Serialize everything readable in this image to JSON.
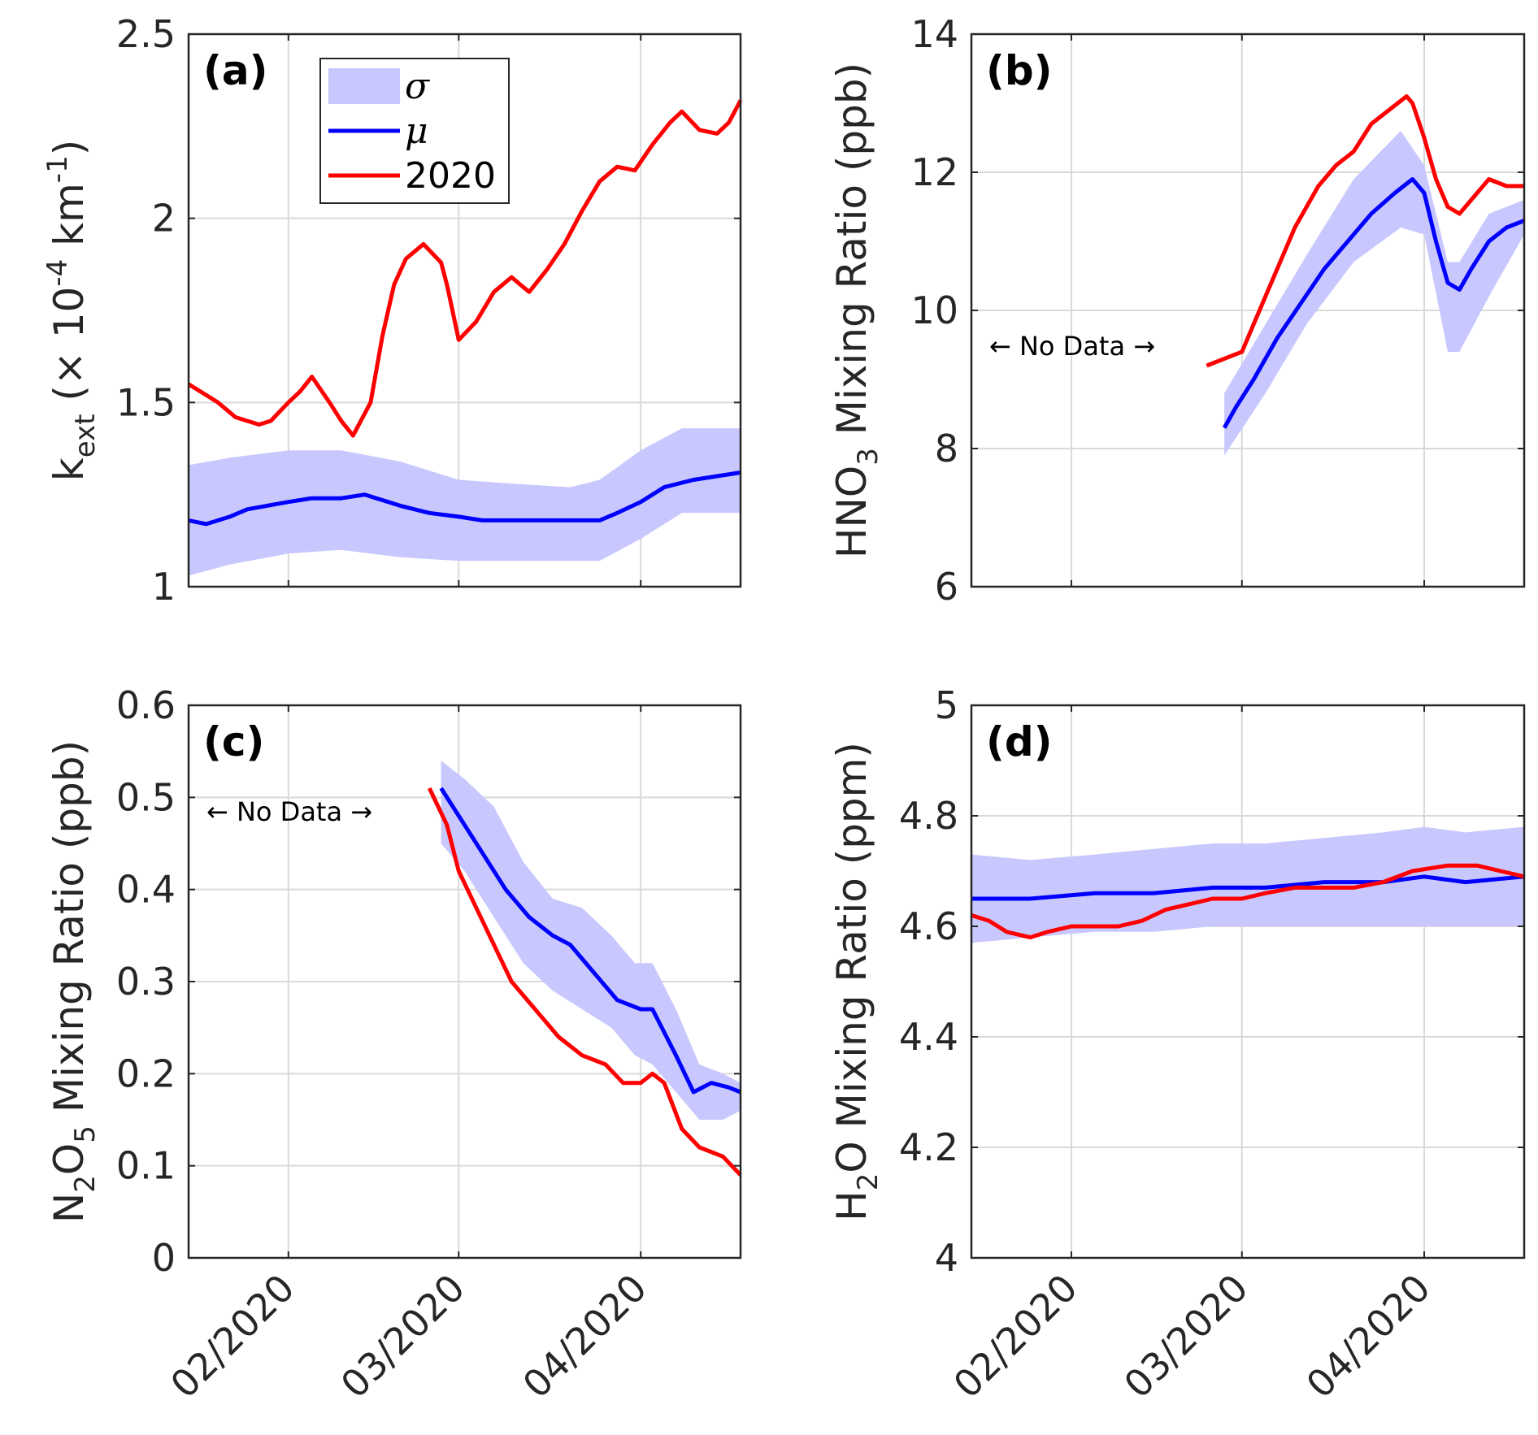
{
  "colors": {
    "band": "#c8c8ff",
    "mean": "#0000ff",
    "year2020": "#ff0000",
    "grid": "#d9d9d9",
    "axis": "#262626"
  },
  "legend": {
    "entries": [
      {
        "key": "band",
        "label": "σ"
      },
      {
        "key": "mean",
        "label": "μ"
      },
      {
        "key": "year2020",
        "label": "2020"
      }
    ]
  },
  "no_data_label": "← No Data →",
  "x_axis": {
    "start": "2020-01-15",
    "end": "2020-04-18",
    "ticks": [
      {
        "date": "2020-02-01",
        "label": "02/2020"
      },
      {
        "date": "2020-03-01",
        "label": "03/2020"
      },
      {
        "date": "2020-04-01",
        "label": "04/2020"
      }
    ]
  },
  "chart_data": [
    {
      "panel": "(a)",
      "type": "line",
      "ylabel": {
        "main": "k",
        "sub": "ext",
        "rest": " (× 10",
        "sup1": "-4",
        "unit": " km",
        "sup2": "-1",
        "close": ")"
      },
      "ylim": [
        1,
        2.5
      ],
      "yticks": [
        1,
        1.5,
        2,
        2.5
      ],
      "ytick_labels": [
        "1",
        "1.5",
        "2",
        "2.5"
      ],
      "has_legend": true,
      "no_data": false,
      "series": [
        {
          "name": "σ",
          "kind": "band",
          "x": [
            "2020-01-15",
            "2020-01-22",
            "2020-02-01",
            "2020-02-10",
            "2020-02-20",
            "2020-03-01",
            "2020-03-10",
            "2020-03-20",
            "2020-03-25",
            "2020-04-01",
            "2020-04-08",
            "2020-04-18"
          ],
          "lower": [
            1.03,
            1.06,
            1.09,
            1.1,
            1.08,
            1.07,
            1.07,
            1.07,
            1.07,
            1.13,
            1.2,
            1.2
          ],
          "upper": [
            1.33,
            1.35,
            1.37,
            1.37,
            1.34,
            1.29,
            1.28,
            1.27,
            1.29,
            1.37,
            1.43,
            1.43
          ]
        },
        {
          "name": "μ",
          "kind": "line",
          "x": [
            "2020-01-15",
            "2020-01-18",
            "2020-01-22",
            "2020-01-25",
            "2020-02-01",
            "2020-02-05",
            "2020-02-10",
            "2020-02-14",
            "2020-02-20",
            "2020-02-25",
            "2020-03-01",
            "2020-03-05",
            "2020-03-10",
            "2020-03-15",
            "2020-03-20",
            "2020-03-25",
            "2020-03-28",
            "2020-04-01",
            "2020-04-05",
            "2020-04-10",
            "2020-04-14",
            "2020-04-18"
          ],
          "y": [
            1.18,
            1.17,
            1.19,
            1.21,
            1.23,
            1.24,
            1.24,
            1.25,
            1.22,
            1.2,
            1.19,
            1.18,
            1.18,
            1.18,
            1.18,
            1.18,
            1.2,
            1.23,
            1.27,
            1.29,
            1.3,
            1.31
          ]
        },
        {
          "name": "2020",
          "kind": "line",
          "x": [
            "2020-01-15",
            "2020-01-18",
            "2020-01-20",
            "2020-01-23",
            "2020-01-25",
            "2020-01-27",
            "2020-01-29",
            "2020-02-01",
            "2020-02-03",
            "2020-02-05",
            "2020-02-08",
            "2020-02-10",
            "2020-02-12",
            "2020-02-15",
            "2020-02-17",
            "2020-02-19",
            "2020-02-21",
            "2020-02-24",
            "2020-02-27",
            "2020-02-28",
            "2020-03-01",
            "2020-03-04",
            "2020-03-07",
            "2020-03-10",
            "2020-03-13",
            "2020-03-16",
            "2020-03-19",
            "2020-03-22",
            "2020-03-25",
            "2020-03-28",
            "2020-03-31",
            "2020-04-03",
            "2020-04-06",
            "2020-04-08",
            "2020-04-11",
            "2020-04-14",
            "2020-04-16",
            "2020-04-18"
          ],
          "y": [
            1.55,
            1.52,
            1.5,
            1.46,
            1.45,
            1.44,
            1.45,
            1.5,
            1.53,
            1.57,
            1.5,
            1.45,
            1.41,
            1.5,
            1.68,
            1.82,
            1.89,
            1.93,
            1.88,
            1.82,
            1.67,
            1.72,
            1.8,
            1.84,
            1.8,
            1.86,
            1.93,
            2.02,
            2.1,
            2.14,
            2.13,
            2.2,
            2.26,
            2.29,
            2.24,
            2.23,
            2.26,
            2.32
          ]
        }
      ]
    },
    {
      "panel": "(b)",
      "type": "line",
      "ylabel": {
        "main": "HNO",
        "sub": "3",
        "rest": " Mixing Ratio (ppb)"
      },
      "ylim": [
        6,
        14
      ],
      "yticks": [
        6,
        8,
        10,
        12,
        14
      ],
      "ytick_labels": [
        "6",
        "8",
        "10",
        "12",
        "14"
      ],
      "has_legend": false,
      "no_data": true,
      "series": [
        {
          "name": "σ",
          "kind": "band",
          "x": [
            "2020-02-27",
            "2020-03-05",
            "2020-03-12",
            "2020-03-20",
            "2020-03-28",
            "2020-04-01",
            "2020-04-05",
            "2020-04-07",
            "2020-04-12",
            "2020-04-18"
          ],
          "lower": [
            7.9,
            8.8,
            9.8,
            10.7,
            11.2,
            11.1,
            9.4,
            9.4,
            10.2,
            11.1
          ],
          "upper": [
            8.8,
            9.8,
            10.8,
            11.9,
            12.6,
            12.1,
            10.7,
            10.7,
            11.4,
            11.6
          ]
        },
        {
          "name": "μ",
          "kind": "line",
          "x": [
            "2020-02-27",
            "2020-02-29",
            "2020-03-03",
            "2020-03-07",
            "2020-03-11",
            "2020-03-15",
            "2020-03-19",
            "2020-03-23",
            "2020-03-27",
            "2020-03-30",
            "2020-04-01",
            "2020-04-03",
            "2020-04-05",
            "2020-04-07",
            "2020-04-09",
            "2020-04-12",
            "2020-04-15",
            "2020-04-18"
          ],
          "y": [
            8.3,
            8.6,
            9.0,
            9.6,
            10.1,
            10.6,
            11.0,
            11.4,
            11.7,
            11.9,
            11.7,
            11.0,
            10.4,
            10.3,
            10.6,
            11.0,
            11.2,
            11.3
          ]
        },
        {
          "name": "2020",
          "kind": "line",
          "x": [
            "2020-02-24",
            "2020-03-01",
            "2020-03-03",
            "2020-03-06",
            "2020-03-10",
            "2020-03-14",
            "2020-03-17",
            "2020-03-20",
            "2020-03-23",
            "2020-03-26",
            "2020-03-29",
            "2020-03-30",
            "2020-04-01",
            "2020-04-03",
            "2020-04-05",
            "2020-04-07",
            "2020-04-09",
            "2020-04-12",
            "2020-04-15",
            "2020-04-18"
          ],
          "y": [
            9.2,
            9.4,
            9.8,
            10.4,
            11.2,
            11.8,
            12.1,
            12.3,
            12.7,
            12.9,
            13.1,
            13.0,
            12.5,
            11.9,
            11.5,
            11.4,
            11.6,
            11.9,
            11.8,
            11.8
          ]
        }
      ]
    },
    {
      "panel": "(c)",
      "type": "line",
      "ylabel": {
        "main": "N",
        "sub": "2",
        "mid": "O",
        "sub2": "5",
        "rest": " Mixing Ratio (ppb)"
      },
      "ylim": [
        0,
        0.6
      ],
      "yticks": [
        0,
        0.1,
        0.2,
        0.3,
        0.4,
        0.5,
        0.6
      ],
      "ytick_labels": [
        "0",
        "0.1",
        "0.2",
        "0.3",
        "0.4",
        "0.5",
        "0.6"
      ],
      "has_legend": false,
      "no_data": true,
      "series": [
        {
          "name": "σ",
          "kind": "band",
          "x": [
            "2020-02-27",
            "2020-03-02",
            "2020-03-07",
            "2020-03-12",
            "2020-03-17",
            "2020-03-22",
            "2020-03-27",
            "2020-03-31",
            "2020-04-03",
            "2020-04-07",
            "2020-04-11",
            "2020-04-15",
            "2020-04-18"
          ],
          "lower": [
            0.45,
            0.42,
            0.37,
            0.32,
            0.29,
            0.27,
            0.25,
            0.22,
            0.21,
            0.18,
            0.15,
            0.15,
            0.16
          ],
          "upper": [
            0.54,
            0.52,
            0.49,
            0.43,
            0.39,
            0.38,
            0.35,
            0.32,
            0.32,
            0.27,
            0.21,
            0.2,
            0.19
          ]
        },
        {
          "name": "μ",
          "kind": "line",
          "x": [
            "2020-02-27",
            "2020-03-01",
            "2020-03-05",
            "2020-03-09",
            "2020-03-13",
            "2020-03-17",
            "2020-03-20",
            "2020-03-24",
            "2020-03-28",
            "2020-04-01",
            "2020-04-03",
            "2020-04-07",
            "2020-04-10",
            "2020-04-13",
            "2020-04-16",
            "2020-04-18"
          ],
          "y": [
            0.51,
            0.48,
            0.44,
            0.4,
            0.37,
            0.35,
            0.34,
            0.31,
            0.28,
            0.27,
            0.27,
            0.22,
            0.18,
            0.19,
            0.185,
            0.18
          ]
        },
        {
          "name": "2020",
          "kind": "line",
          "x": [
            "2020-02-25",
            "2020-02-28",
            "2020-03-01",
            "2020-03-04",
            "2020-03-07",
            "2020-03-10",
            "2020-03-14",
            "2020-03-18",
            "2020-03-22",
            "2020-03-26",
            "2020-03-29",
            "2020-04-01",
            "2020-04-03",
            "2020-04-05",
            "2020-04-08",
            "2020-04-11",
            "2020-04-15",
            "2020-04-18"
          ],
          "y": [
            0.51,
            0.47,
            0.42,
            0.38,
            0.34,
            0.3,
            0.27,
            0.24,
            0.22,
            0.21,
            0.19,
            0.19,
            0.2,
            0.19,
            0.14,
            0.12,
            0.11,
            0.09
          ]
        }
      ]
    },
    {
      "panel": "(d)",
      "type": "line",
      "ylabel": {
        "main": "H",
        "sub": "2",
        "rest": "O Mixing Ratio (ppm)"
      },
      "ylim": [
        4,
        5
      ],
      "yticks": [
        4,
        4.2,
        4.4,
        4.6,
        4.8,
        5
      ],
      "ytick_labels": [
        "4",
        "4.2",
        "4.4",
        "4.6",
        "4.8",
        "5"
      ],
      "has_legend": false,
      "no_data": false,
      "series": [
        {
          "name": "σ",
          "kind": "band",
          "x": [
            "2020-01-15",
            "2020-01-25",
            "2020-02-05",
            "2020-02-15",
            "2020-02-25",
            "2020-03-05",
            "2020-03-15",
            "2020-03-25",
            "2020-04-01",
            "2020-04-08",
            "2020-04-18"
          ],
          "lower": [
            4.57,
            4.58,
            4.59,
            4.59,
            4.6,
            4.6,
            4.6,
            4.6,
            4.6,
            4.6,
            4.6
          ],
          "upper": [
            4.73,
            4.72,
            4.73,
            4.74,
            4.75,
            4.75,
            4.76,
            4.77,
            4.78,
            4.77,
            4.78
          ]
        },
        {
          "name": "μ",
          "kind": "line",
          "x": [
            "2020-01-15",
            "2020-01-25",
            "2020-02-05",
            "2020-02-15",
            "2020-02-25",
            "2020-03-05",
            "2020-03-15",
            "2020-03-25",
            "2020-04-01",
            "2020-04-08",
            "2020-04-18"
          ],
          "y": [
            4.65,
            4.65,
            4.66,
            4.66,
            4.67,
            4.67,
            4.68,
            4.68,
            4.69,
            4.68,
            4.69
          ]
        },
        {
          "name": "2020",
          "kind": "line",
          "x": [
            "2020-01-15",
            "2020-01-18",
            "2020-01-21",
            "2020-01-25",
            "2020-01-28",
            "2020-02-01",
            "2020-02-05",
            "2020-02-09",
            "2020-02-13",
            "2020-02-17",
            "2020-02-21",
            "2020-02-25",
            "2020-03-01",
            "2020-03-05",
            "2020-03-10",
            "2020-03-15",
            "2020-03-20",
            "2020-03-25",
            "2020-03-30",
            "2020-04-05",
            "2020-04-10",
            "2020-04-14",
            "2020-04-18"
          ],
          "y": [
            4.62,
            4.61,
            4.59,
            4.58,
            4.59,
            4.6,
            4.6,
            4.6,
            4.61,
            4.63,
            4.64,
            4.65,
            4.65,
            4.66,
            4.67,
            4.67,
            4.67,
            4.68,
            4.7,
            4.71,
            4.71,
            4.7,
            4.69
          ]
        }
      ]
    }
  ]
}
